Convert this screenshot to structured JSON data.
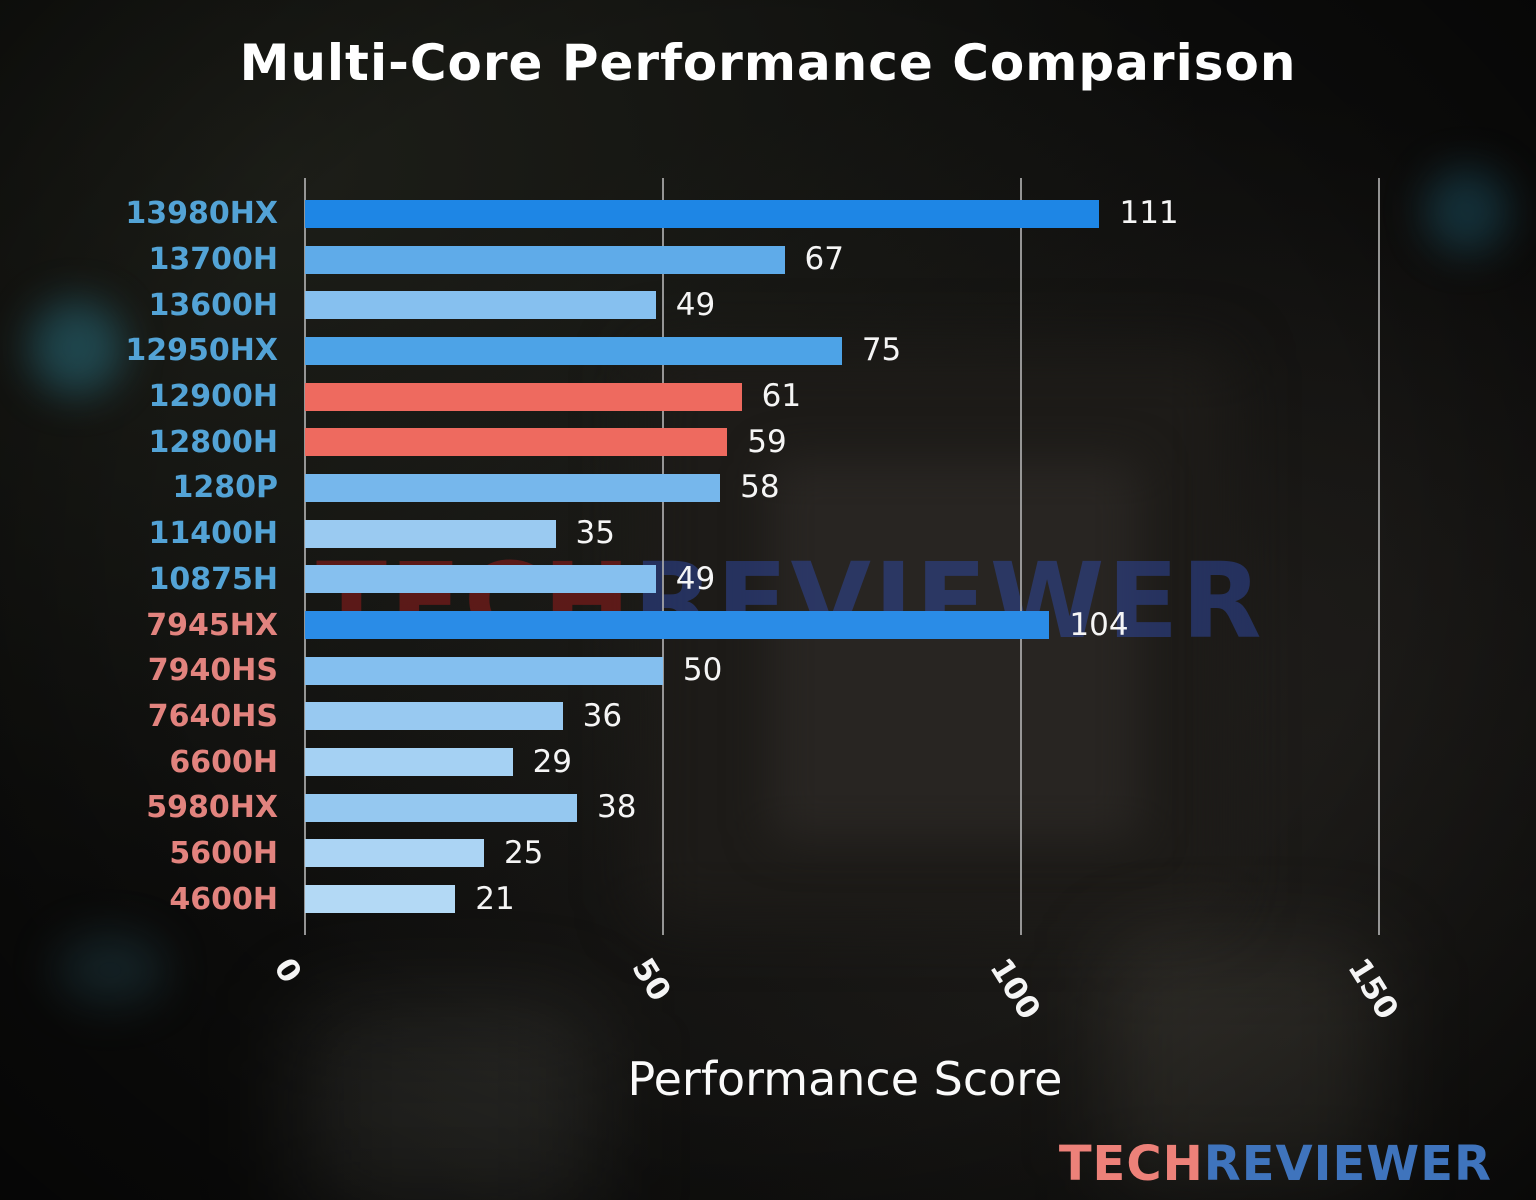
{
  "chart_data": {
    "type": "bar",
    "orientation": "horizontal",
    "title": "Multi-Core Performance Comparison",
    "xlabel": "Performance Score",
    "ylabel": "",
    "xlim": [
      0,
      165
    ],
    "grid": "vertical-gridlines-only",
    "legend": "none",
    "xticks": [
      {
        "value": 0,
        "label": "0"
      },
      {
        "value": 50,
        "label": "50"
      },
      {
        "value": 100,
        "label": "100"
      },
      {
        "value": 150,
        "label": "150"
      }
    ],
    "bars": [
      {
        "category": "13980HX",
        "value": 111,
        "bar_color": "#1e86e5",
        "label_color": "#53a3d6"
      },
      {
        "category": "13700H",
        "value": 67,
        "bar_color": "#5fabe9",
        "label_color": "#53a3d6"
      },
      {
        "category": "13600H",
        "value": 49,
        "bar_color": "#86c0ef",
        "label_color": "#53a3d6"
      },
      {
        "category": "12950HX",
        "value": 75,
        "bar_color": "#4da3e7",
        "label_color": "#53a3d6"
      },
      {
        "category": "12900H",
        "value": 61,
        "bar_color": "#ee6a5f",
        "label_color": "#53a3d6"
      },
      {
        "category": "12800H",
        "value": 59,
        "bar_color": "#ee6a5f",
        "label_color": "#53a3d6"
      },
      {
        "category": "1280P",
        "value": 58,
        "bar_color": "#76b7ec",
        "label_color": "#53a3d6"
      },
      {
        "category": "11400H",
        "value": 35,
        "bar_color": "#9acaf1",
        "label_color": "#53a3d6"
      },
      {
        "category": "10875H",
        "value": 49,
        "bar_color": "#86c0ef",
        "label_color": "#53a3d6"
      },
      {
        "category": "7945HX",
        "value": 104,
        "bar_color": "#2a8ce7",
        "label_color": "#e2837e"
      },
      {
        "category": "7940HS",
        "value": 50,
        "bar_color": "#84bfef",
        "label_color": "#e2837e"
      },
      {
        "category": "7640HS",
        "value": 36,
        "bar_color": "#98c9f1",
        "label_color": "#e2837e"
      },
      {
        "category": "6600H",
        "value": 29,
        "bar_color": "#a5d1f3",
        "label_color": "#e2837e"
      },
      {
        "category": "5980HX",
        "value": 38,
        "bar_color": "#95c8f0",
        "label_color": "#e2837e"
      },
      {
        "category": "5600H",
        "value": 25,
        "bar_color": "#abd4f4",
        "label_color": "#e2837e"
      },
      {
        "category": "4600H",
        "value": 21,
        "bar_color": "#b3d9f5",
        "label_color": "#e2837e"
      }
    ],
    "colors": {
      "intel_label": "#53a3d6",
      "amd_label": "#e2837e",
      "highlight_bar": "#ee6a5f",
      "value_text": "#f5f5f5",
      "gridline": "#acacac"
    }
  },
  "watermark": {
    "red_text": "TECH",
    "blue_text": "REVIEWER"
  },
  "logo": {
    "red_text": "TECH",
    "blue_text": "REVIEWER"
  }
}
